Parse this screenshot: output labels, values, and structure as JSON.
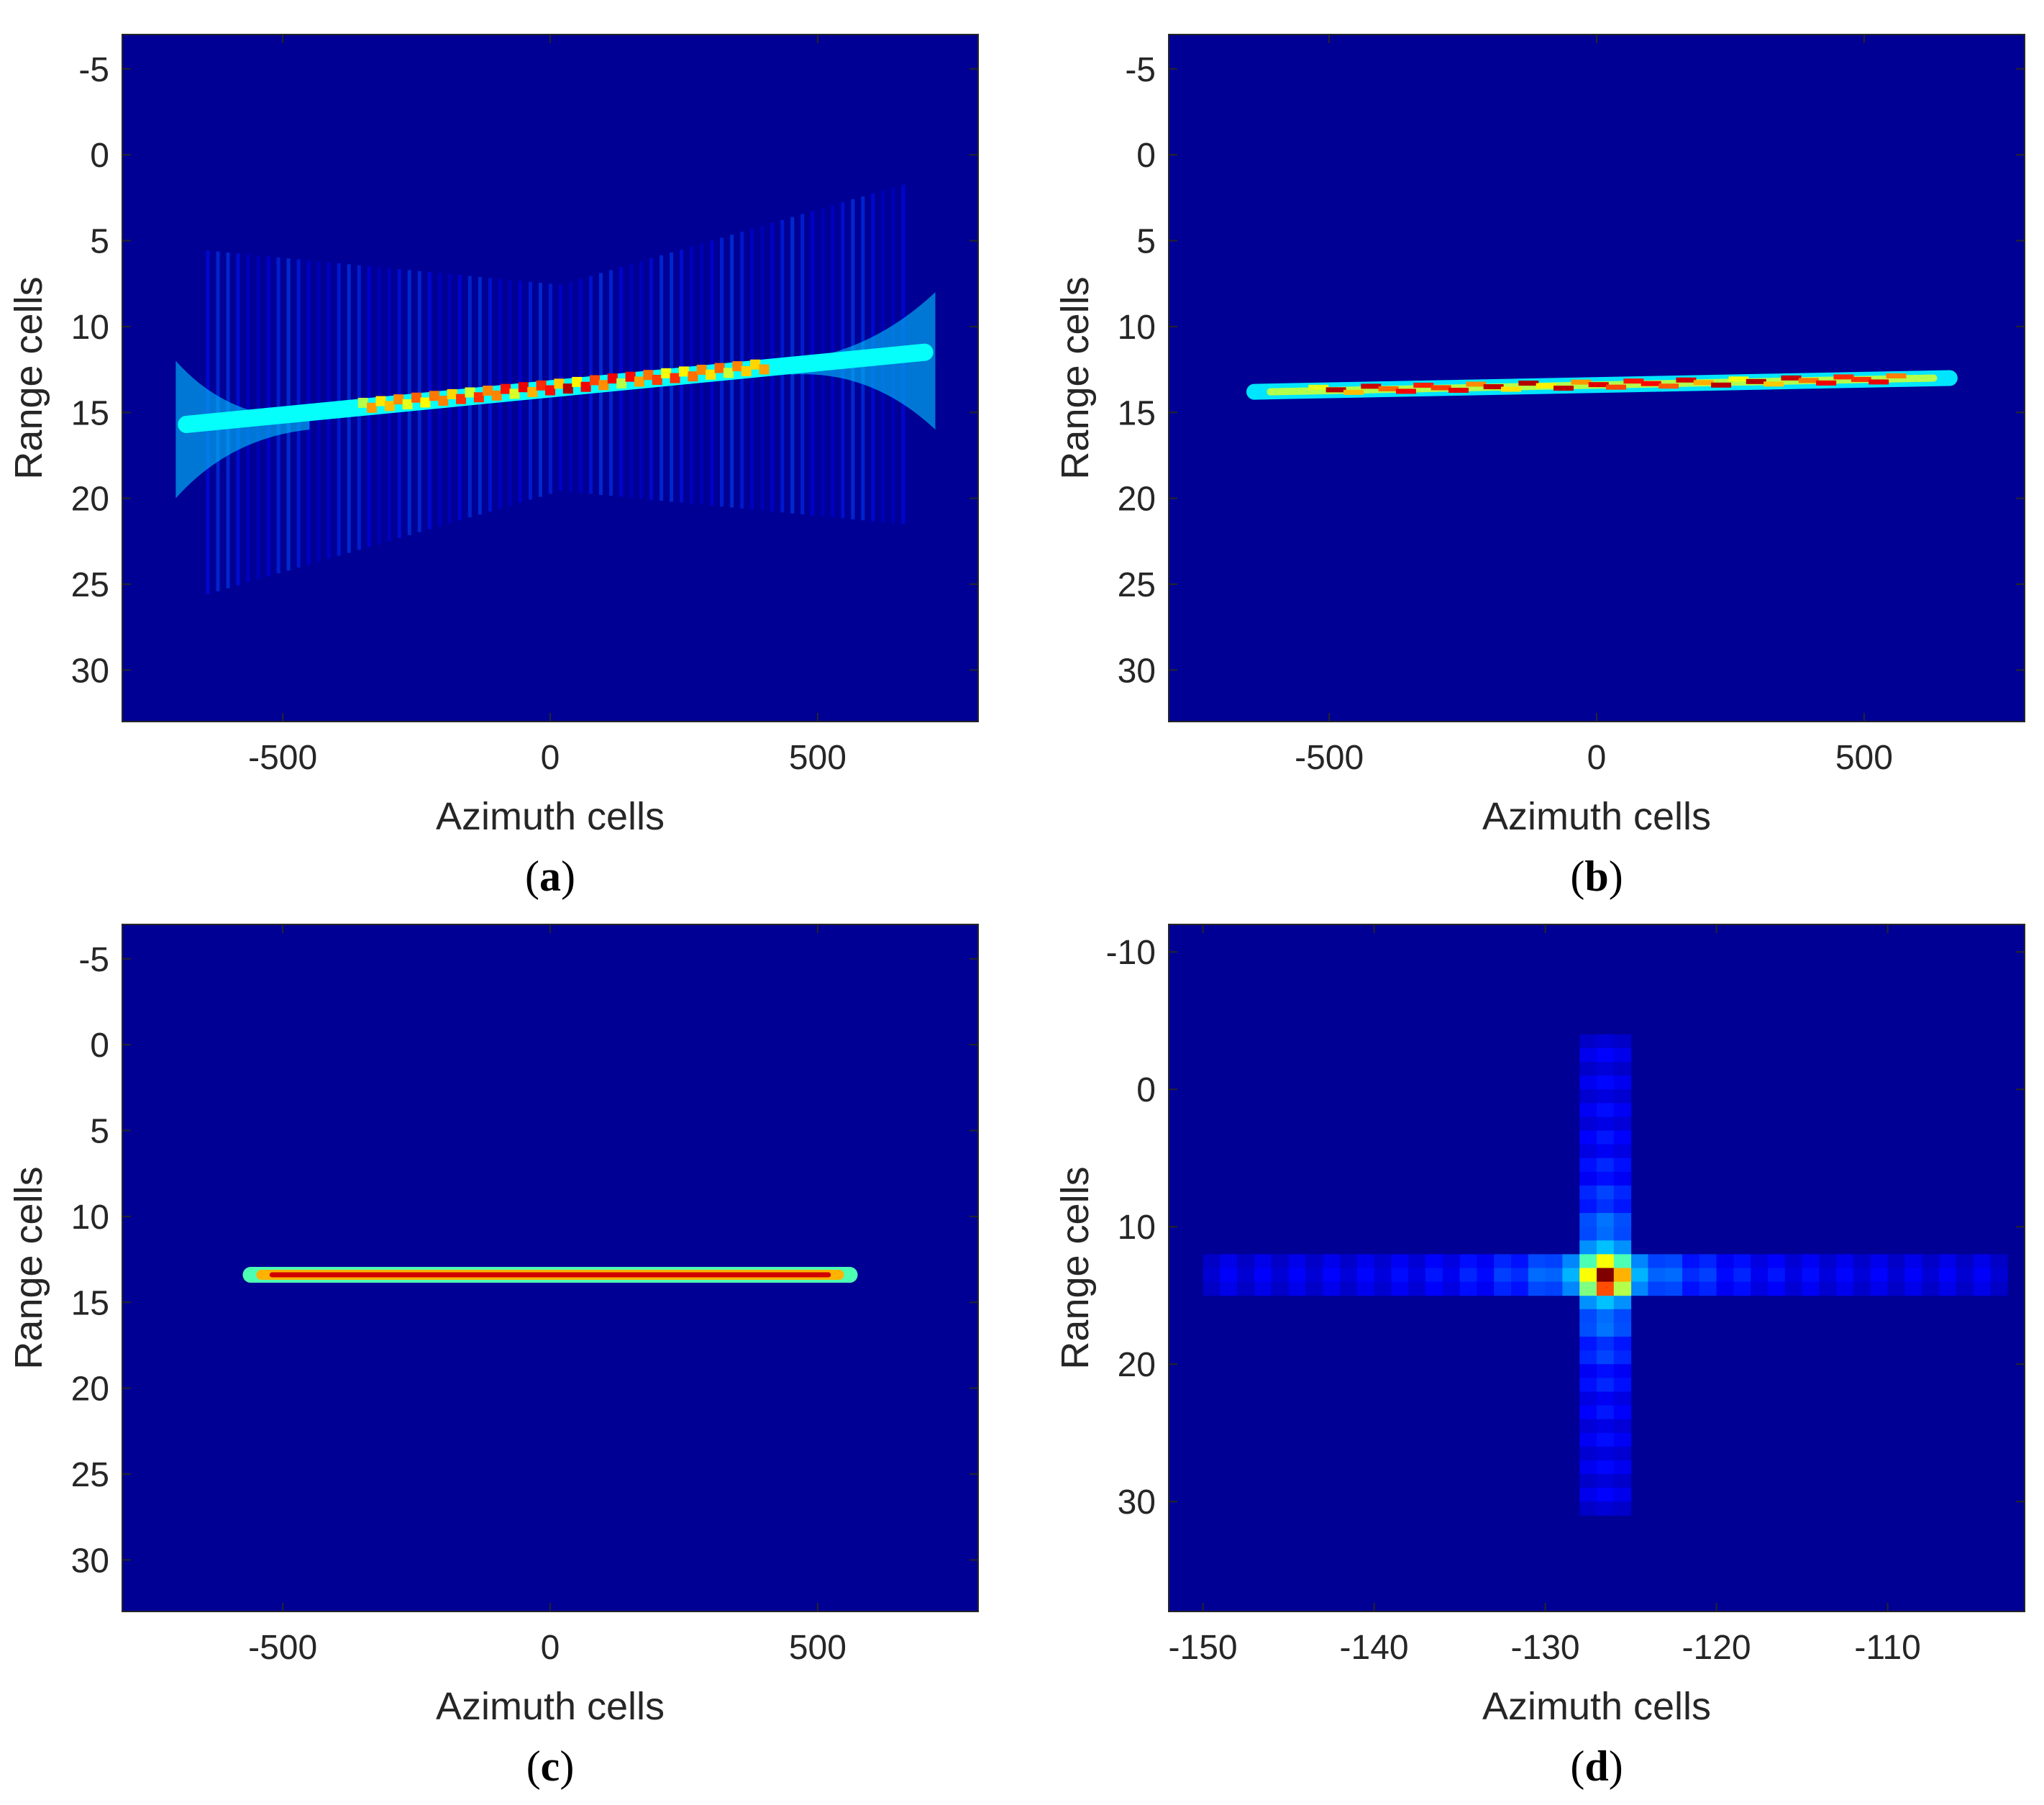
{
  "figure": {
    "colormap": [
      "#00008f",
      "#0000ff",
      "#00ffff",
      "#ffff00",
      "#ff0000",
      "#800000"
    ],
    "background": "#000090"
  },
  "chart_data": [
    {
      "id": "a",
      "type": "heatmap",
      "caption_letter": "a",
      "xlabel": "Azimuth cells",
      "ylabel": "Range cells",
      "xlim": [
        -800,
        800
      ],
      "ylim": [
        33,
        -7
      ],
      "xticks": [
        -500,
        0,
        500
      ],
      "xtick_labels": [
        "-500",
        "0",
        "500"
      ],
      "yticks": [
        -5,
        0,
        5,
        10,
        15,
        20,
        25,
        30
      ],
      "ytick_labels": [
        "-5",
        "0",
        "5",
        "10",
        "15",
        "20",
        "25",
        "30"
      ],
      "pattern": {
        "kind": "defocused-tilted-line",
        "x_start": -680,
        "x_end": 700,
        "y_start": 15.7,
        "y_end": 11.5,
        "peak_x_range": [
          -350,
          400
        ]
      }
    },
    {
      "id": "b",
      "type": "heatmap",
      "caption_letter": "b",
      "xlabel": "Azimuth cells",
      "ylabel": "Range cells",
      "xlim": [
        -800,
        800
      ],
      "ylim": [
        33,
        -7
      ],
      "xticks": [
        -500,
        0,
        500
      ],
      "xtick_labels": [
        "-500",
        "0",
        "500"
      ],
      "yticks": [
        -5,
        0,
        5,
        10,
        15,
        20,
        25,
        30
      ],
      "ytick_labels": [
        "-5",
        "0",
        "5",
        "10",
        "15",
        "20",
        "25",
        "30"
      ],
      "pattern": {
        "kind": "thin-line",
        "x_start": -640,
        "x_end": 660,
        "y_start": 13.8,
        "y_end": 13.0
      }
    },
    {
      "id": "c",
      "type": "heatmap",
      "caption_letter": "c",
      "xlabel": "Azimuth cells",
      "ylabel": "Range cells",
      "xlim": [
        -800,
        800
      ],
      "ylim": [
        33,
        -7
      ],
      "xticks": [
        -500,
        0,
        500
      ],
      "xtick_labels": [
        "-500",
        "0",
        "500"
      ],
      "yticks": [
        -5,
        0,
        5,
        10,
        15,
        20,
        25,
        30
      ],
      "ytick_labels": [
        "-5",
        "0",
        "5",
        "10",
        "15",
        "20",
        "25",
        "30"
      ],
      "pattern": {
        "kind": "focused-line",
        "x_start": -560,
        "x_end": 560,
        "y": 13.4
      }
    },
    {
      "id": "d",
      "type": "heatmap",
      "caption_letter": "d",
      "xlabel": "Azimuth cells",
      "ylabel": "Range cells",
      "xlim": [
        -152,
        -102
      ],
      "ylim": [
        38,
        -12
      ],
      "xticks": [
        -150,
        -140,
        -130,
        -120,
        -110
      ],
      "xtick_labels": [
        "-150",
        "-140",
        "-130",
        "-120",
        "-110"
      ],
      "yticks": [
        -10,
        0,
        10,
        20,
        30
      ],
      "ytick_labels": [
        "-10",
        "0",
        "10",
        "20",
        "30"
      ],
      "pattern": {
        "kind": "point-target",
        "x": -126.5,
        "y": 13.5,
        "peak": 1.0
      }
    }
  ]
}
